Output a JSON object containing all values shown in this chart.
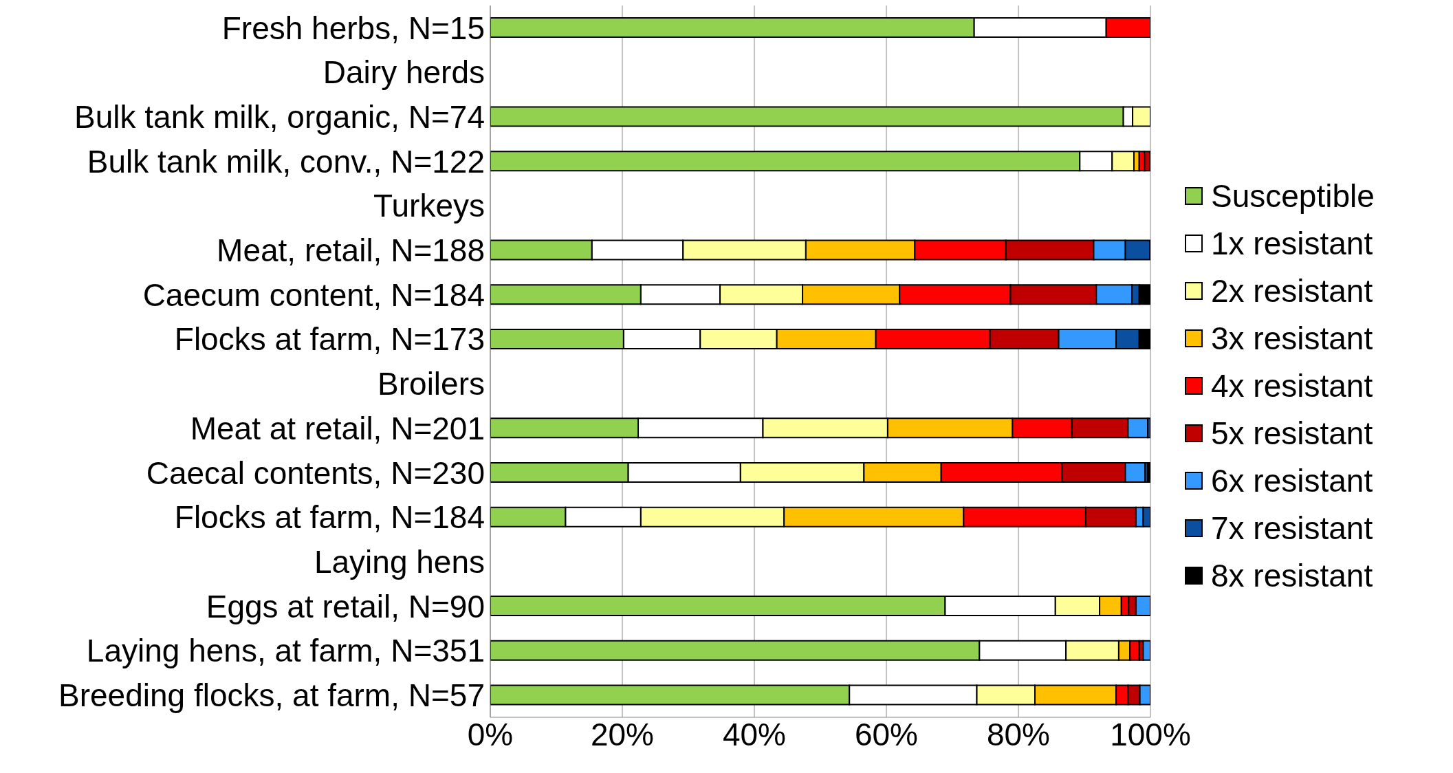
{
  "chart_data": {
    "type": "bar",
    "orientation": "horizontal",
    "stacked": true,
    "categories": [
      "Fresh herbs, N=15",
      "Dairy herds",
      "Bulk tank milk, organic, N=74",
      "Bulk tank milk, conv., N=122",
      "Turkeys",
      "Meat, retail, N=188",
      "Caecum content, N=184",
      "Flocks at farm, N=173",
      "Broilers",
      "Meat at retail, N=201",
      "Caecal contents, N=230",
      "Flocks at farm, N=184",
      "Laying hens",
      "Eggs at retail, N=90",
      "Laying hens, at farm, N=351",
      "Breeding flocks, at farm, N=57"
    ],
    "series": [
      {
        "name": "Susceptible",
        "color": "#92d050",
        "values": [
          73.3,
          null,
          95.9,
          89.3,
          null,
          15.4,
          22.8,
          20.2,
          null,
          22.4,
          20.9,
          11.4,
          null,
          68.9,
          74.1,
          54.4
        ]
      },
      {
        "name": "1x resistant",
        "color": "#ffffff",
        "values": [
          20.0,
          null,
          1.4,
          4.9,
          null,
          13.8,
          12.0,
          11.6,
          null,
          18.9,
          17.0,
          11.4,
          null,
          16.7,
          13.1,
          19.3
        ]
      },
      {
        "name": "2x resistant",
        "color": "#ffff99",
        "values": [
          0,
          null,
          2.7,
          3.3,
          null,
          18.6,
          12.5,
          11.6,
          null,
          18.9,
          18.7,
          21.7,
          null,
          6.7,
          8.0,
          8.8
        ]
      },
      {
        "name": "3x resistant",
        "color": "#ffc000",
        "values": [
          0,
          null,
          0,
          0.8,
          null,
          16.5,
          14.7,
          15.0,
          null,
          18.9,
          11.7,
          27.2,
          null,
          3.3,
          1.7,
          12.3
        ]
      },
      {
        "name": "4x resistant",
        "color": "#ff0000",
        "values": [
          6.7,
          null,
          0,
          0.8,
          null,
          13.8,
          16.8,
          17.3,
          null,
          9.0,
          18.3,
          18.5,
          null,
          1.1,
          1.4,
          1.8
        ]
      },
      {
        "name": "5x resistant",
        "color": "#c00000",
        "values": [
          0,
          null,
          0,
          0.8,
          null,
          13.3,
          13.0,
          10.4,
          null,
          8.5,
          9.6,
          7.6,
          null,
          1.1,
          0.6,
          1.8
        ]
      },
      {
        "name": "6x resistant",
        "color": "#3399ff",
        "values": [
          0,
          null,
          0,
          0,
          null,
          4.8,
          5.4,
          8.7,
          null,
          3.0,
          3.0,
          1.1,
          null,
          2.2,
          1.1,
          1.8
        ]
      },
      {
        "name": "7x resistant",
        "color": "#0b4fa0",
        "values": [
          0,
          null,
          0,
          0,
          null,
          3.7,
          1.1,
          3.5,
          null,
          0.5,
          0.4,
          1.1,
          null,
          0,
          0,
          0
        ]
      },
      {
        "name": "8x resistant",
        "color": "#000000",
        "values": [
          0,
          null,
          0,
          0,
          null,
          0,
          1.6,
          1.7,
          null,
          0,
          0.4,
          0,
          null,
          0,
          0,
          0
        ]
      }
    ],
    "xlim": [
      0,
      100
    ],
    "xticks": [
      {
        "value": 0,
        "label": "0%"
      },
      {
        "value": 20,
        "label": "20%"
      },
      {
        "value": 40,
        "label": "40%"
      },
      {
        "value": 60,
        "label": "60%"
      },
      {
        "value": 80,
        "label": "80%"
      },
      {
        "value": 100,
        "label": "100%"
      }
    ],
    "grid": "x",
    "legend": "right"
  }
}
